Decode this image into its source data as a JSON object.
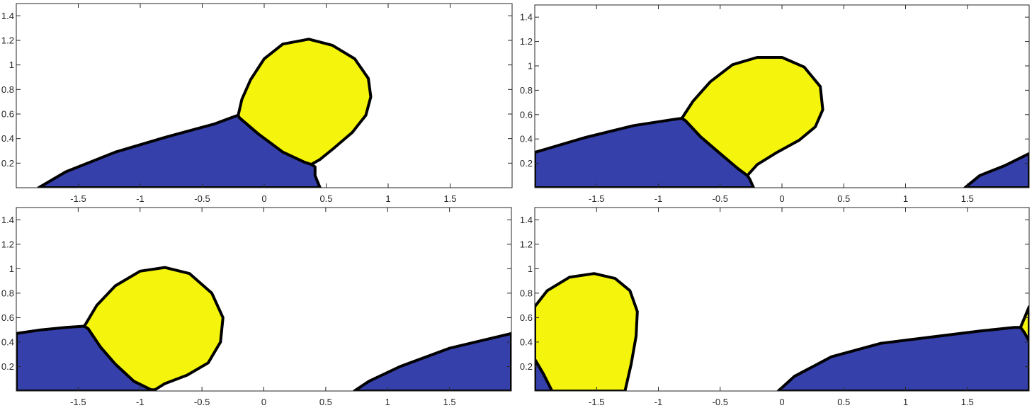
{
  "chart_data": [
    {
      "type": "area",
      "panel": "top-left",
      "xlim": [
        -2,
        2
      ],
      "ylim": [
        0,
        1.5
      ],
      "xticks": [
        -1.5,
        -1,
        -0.5,
        0,
        0.5,
        1,
        1.5
      ],
      "yticks": [
        0.2,
        0.4,
        0.6,
        0.8,
        1,
        1.2,
        1.4
      ],
      "xtick_labels": [
        "-1.5",
        "-1",
        "-0.5",
        "0",
        "0.5",
        "1",
        "1.5"
      ],
      "ytick_labels": [
        "0.2",
        "0.4",
        "0.6",
        "0.8",
        "1",
        "1.2",
        "1.4"
      ],
      "grid": false,
      "colors": {
        "blue": "#3640ab",
        "yellow": "#f4f40c",
        "boundary": "#000000"
      },
      "regions": [
        {
          "fill": "blue",
          "points": [
            [
              -1.82,
              0
            ],
            [
              -1.6,
              0.13
            ],
            [
              -1.2,
              0.29
            ],
            [
              -0.8,
              0.41
            ],
            [
              -0.4,
              0.52
            ],
            [
              -0.24,
              0.58
            ],
            [
              -0.21,
              0.59
            ],
            [
              -0.2,
              0.57
            ],
            [
              -0.05,
              0.44
            ],
            [
              0.15,
              0.29
            ],
            [
              0.32,
              0.21
            ],
            [
              0.38,
              0.19
            ],
            [
              0.41,
              0.17
            ],
            [
              0.41,
              0.1
            ],
            [
              0.45,
              0
            ]
          ]
        },
        {
          "fill": "yellow",
          "points": [
            [
              -0.21,
              0.59
            ],
            [
              -0.18,
              0.72
            ],
            [
              -0.11,
              0.88
            ],
            [
              0.0,
              1.05
            ],
            [
              0.15,
              1.17
            ],
            [
              0.36,
              1.21
            ],
            [
              0.55,
              1.16
            ],
            [
              0.73,
              1.05
            ],
            [
              0.84,
              0.89
            ],
            [
              0.86,
              0.74
            ],
            [
              0.82,
              0.59
            ],
            [
              0.71,
              0.45
            ],
            [
              0.56,
              0.32
            ],
            [
              0.45,
              0.23
            ],
            [
              0.38,
              0.19
            ],
            [
              0.32,
              0.21
            ],
            [
              0.15,
              0.29
            ],
            [
              -0.05,
              0.44
            ],
            [
              -0.2,
              0.57
            ]
          ]
        }
      ]
    },
    {
      "type": "area",
      "panel": "top-right",
      "xlim": [
        -2,
        2
      ],
      "ylim": [
        0,
        1.5
      ],
      "xticks": [
        -1.5,
        -1,
        -0.5,
        0,
        0.5,
        1,
        1.5
      ],
      "yticks": [
        0.2,
        0.4,
        0.6,
        0.8,
        1,
        1.2,
        1.4
      ],
      "xtick_labels": [
        "-1.5",
        "-1",
        "-0.5",
        "0",
        "0.5",
        "1",
        "1.5"
      ],
      "ytick_labels": [
        "0.2",
        "0.4",
        "0.6",
        "0.8",
        "1",
        "1.2",
        "1.4"
      ],
      "grid": false,
      "colors": {
        "blue": "#3640ab",
        "yellow": "#f4f40c",
        "boundary": "#000000"
      },
      "regions": [
        {
          "fill": "blue",
          "points": [
            [
              -2,
              0
            ],
            [
              -2,
              0.29
            ],
            [
              -1.6,
              0.41
            ],
            [
              -1.2,
              0.51
            ],
            [
              -0.88,
              0.56
            ],
            [
              -0.81,
              0.57
            ],
            [
              -0.78,
              0.55
            ],
            [
              -0.66,
              0.42
            ],
            [
              -0.5,
              0.28
            ],
            [
              -0.36,
              0.16
            ],
            [
              -0.28,
              0.1
            ],
            [
              -0.26,
              0.07
            ],
            [
              -0.23,
              0
            ]
          ]
        },
        {
          "fill": "blue",
          "points": [
            [
              1.48,
              0
            ],
            [
              1.6,
              0.1
            ],
            [
              1.8,
              0.18
            ],
            [
              2,
              0.28
            ],
            [
              2,
              0
            ]
          ]
        },
        {
          "fill": "yellow",
          "points": [
            [
              -0.81,
              0.57
            ],
            [
              -0.72,
              0.71
            ],
            [
              -0.58,
              0.87
            ],
            [
              -0.4,
              1.01
            ],
            [
              -0.2,
              1.07
            ],
            [
              0.0,
              1.07
            ],
            [
              0.18,
              0.99
            ],
            [
              0.31,
              0.83
            ],
            [
              0.33,
              0.64
            ],
            [
              0.27,
              0.5
            ],
            [
              0.14,
              0.39
            ],
            [
              -0.04,
              0.29
            ],
            [
              -0.2,
              0.19
            ],
            [
              -0.28,
              0.1
            ],
            [
              -0.36,
              0.16
            ],
            [
              -0.5,
              0.28
            ],
            [
              -0.66,
              0.42
            ],
            [
              -0.78,
              0.55
            ]
          ]
        }
      ]
    },
    {
      "type": "area",
      "panel": "bottom-left",
      "xlim": [
        -2,
        2
      ],
      "ylim": [
        0,
        1.5
      ],
      "xticks": [
        -1.5,
        -1,
        -0.5,
        0,
        0.5,
        1,
        1.5
      ],
      "yticks": [
        0.2,
        0.4,
        0.6,
        0.8,
        1,
        1.2,
        1.4
      ],
      "xtick_labels": [
        "-1.5",
        "-1",
        "-0.5",
        "0",
        "0.5",
        "1",
        "1.5"
      ],
      "ytick_labels": [
        "0.2",
        "0.4",
        "0.6",
        "0.8",
        "1",
        "1.2",
        "1.4"
      ],
      "grid": false,
      "colors": {
        "blue": "#3640ab",
        "yellow": "#f4f40c",
        "boundary": "#000000"
      },
      "regions": [
        {
          "fill": "blue",
          "points": [
            [
              -2,
              0
            ],
            [
              -2,
              0.47
            ],
            [
              -1.8,
              0.5
            ],
            [
              -1.6,
              0.52
            ],
            [
              -1.45,
              0.53
            ],
            [
              -1.42,
              0.51
            ],
            [
              -1.32,
              0.36
            ],
            [
              -1.2,
              0.22
            ],
            [
              -1.05,
              0.08
            ],
            [
              -0.91,
              0.01
            ],
            [
              -0.88,
              0
            ]
          ]
        },
        {
          "fill": "blue",
          "points": [
            [
              0.73,
              0
            ],
            [
              0.85,
              0.08
            ],
            [
              1.1,
              0.2
            ],
            [
              1.5,
              0.35
            ],
            [
              2,
              0.47
            ],
            [
              2,
              0
            ]
          ]
        },
        {
          "fill": "yellow",
          "points": [
            [
              -1.45,
              0.53
            ],
            [
              -1.35,
              0.7
            ],
            [
              -1.2,
              0.86
            ],
            [
              -1.0,
              0.98
            ],
            [
              -0.8,
              1.01
            ],
            [
              -0.6,
              0.96
            ],
            [
              -0.42,
              0.8
            ],
            [
              -0.33,
              0.6
            ],
            [
              -0.35,
              0.4
            ],
            [
              -0.45,
              0.23
            ],
            [
              -0.62,
              0.13
            ],
            [
              -0.8,
              0.06
            ],
            [
              -0.88,
              0.01
            ],
            [
              -0.91,
              0.01
            ],
            [
              -1.05,
              0.08
            ],
            [
              -1.2,
              0.22
            ],
            [
              -1.32,
              0.36
            ],
            [
              -1.42,
              0.51
            ]
          ]
        }
      ]
    },
    {
      "type": "area",
      "panel": "bottom-right",
      "xlim": [
        -2,
        2
      ],
      "ylim": [
        0,
        1.5
      ],
      "xticks": [
        -1.5,
        -1,
        -0.5,
        0,
        0.5,
        1,
        1.5
      ],
      "yticks": [
        0.2,
        0.4,
        0.6,
        0.8,
        1,
        1.2,
        1.4
      ],
      "xtick_labels": [
        "-1.5",
        "-1",
        "-0.5",
        "0",
        "0.5",
        "1",
        "1.5"
      ],
      "ytick_labels": [
        "0.2",
        "0.4",
        "0.6",
        "0.8",
        "1",
        "1.2",
        "1.4"
      ],
      "grid": false,
      "colors": {
        "blue": "#3640ab",
        "yellow": "#f4f40c",
        "boundary": "#000000"
      },
      "regions": [
        {
          "fill": "blue",
          "points": [
            [
              -2,
              0
            ],
            [
              -2,
              0.26
            ],
            [
              -1.93,
              0.14
            ],
            [
              -1.86,
              0
            ]
          ]
        },
        {
          "fill": "blue",
          "points": [
            [
              -0.03,
              0
            ],
            [
              0.1,
              0.12
            ],
            [
              0.4,
              0.28
            ],
            [
              0.8,
              0.39
            ],
            [
              1.2,
              0.44
            ],
            [
              1.6,
              0.49
            ],
            [
              1.88,
              0.52
            ],
            [
              1.93,
              0.52
            ],
            [
              1.96,
              0.48
            ],
            [
              2,
              0.41
            ],
            [
              2,
              0
            ]
          ]
        },
        {
          "fill": "yellow",
          "points": [
            [
              -2,
              0.26
            ],
            [
              -2,
              0.69
            ],
            [
              -1.9,
              0.82
            ],
            [
              -1.72,
              0.93
            ],
            [
              -1.52,
              0.96
            ],
            [
              -1.35,
              0.92
            ],
            [
              -1.23,
              0.82
            ],
            [
              -1.17,
              0.65
            ],
            [
              -1.18,
              0.45
            ],
            [
              -1.22,
              0.22
            ],
            [
              -1.27,
              0
            ],
            [
              -1.86,
              0
            ],
            [
              -1.93,
              0.14
            ]
          ]
        },
        {
          "fill": "yellow",
          "points": [
            [
              1.93,
              0.52
            ],
            [
              2,
              0.69
            ],
            [
              2,
              0.41
            ],
            [
              1.96,
              0.48
            ]
          ]
        }
      ]
    }
  ]
}
